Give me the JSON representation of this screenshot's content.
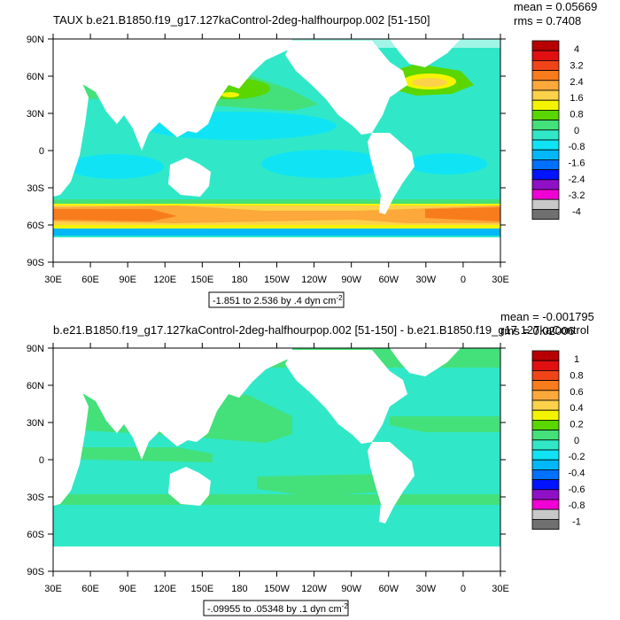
{
  "chart_data": [
    {
      "type": "heatmap",
      "title": "TAUX b.e21.B1850.f19_g17.127kaControl-2deg-halfhourpop.002 [51-150]",
      "stats": {
        "mean": "mean = 0.05669",
        "rms": "rms = 0.7408"
      },
      "lat_ticks": [
        "90N",
        "60N",
        "30N",
        "0",
        "30S",
        "60S",
        "90S"
      ],
      "lon_ticks": [
        "30E",
        "60E",
        "90E",
        "120E",
        "150E",
        "180",
        "150W",
        "120W",
        "90W",
        "60W",
        "30W",
        "0",
        "30E"
      ],
      "colorbar_labels": [
        "4",
        "3.2",
        "2.4",
        "1.6",
        "0.8",
        "0",
        "-0.8",
        "-1.6",
        "-2.4",
        "-3.2",
        "-4"
      ],
      "colorbar_colors": [
        "#b80000",
        "#e01010",
        "#f04418",
        "#f87c1c",
        "#fca83a",
        "#fcd24a",
        "#f4f400",
        "#5ad600",
        "#44e07a",
        "#30e8c8",
        "#10e4f4",
        "#00b8f8",
        "#0070ff",
        "#0014ff",
        "#9010c8",
        "#f000d4",
        "#c8c8c8",
        "#707070"
      ],
      "subtitle": "-1.851 to 2.536 by .4 dyn cm",
      "subtitle_sup": "-2",
      "xlim": [
        30,
        390
      ],
      "ylim": [
        -90,
        90
      ]
    },
    {
      "type": "heatmap",
      "title": "b.e21.B1850.f19_g17.127kaControl-2deg-halfhourpop.002 [51-150] - b.e21.B1850.f19_g17.127kaControl",
      "stats": {
        "mean": "mean = -0.001795",
        "rms": "rms = 0.02006"
      },
      "lat_ticks": [
        "90N",
        "60N",
        "30N",
        "0",
        "30S",
        "60S",
        "90S"
      ],
      "lon_ticks": [
        "30E",
        "60E",
        "90E",
        "120E",
        "150E",
        "180",
        "150W",
        "120W",
        "90W",
        "60W",
        "30W",
        "0",
        "30E"
      ],
      "colorbar_labels": [
        "1",
        "0.8",
        "0.6",
        "0.4",
        "0.2",
        "0",
        "-0.2",
        "-0.4",
        "-0.6",
        "-0.8",
        "-1"
      ],
      "colorbar_colors": [
        "#b80000",
        "#e01010",
        "#f04418",
        "#f87c1c",
        "#fca83a",
        "#fcd24a",
        "#f4f400",
        "#5ad600",
        "#44e07a",
        "#30e8c8",
        "#10e4f4",
        "#00b8f8",
        "#0070ff",
        "#0014ff",
        "#9010c8",
        "#f000d4",
        "#c8c8c8",
        "#707070"
      ],
      "subtitle": "-.09955 to .05348 by .1 dyn cm",
      "subtitle_sup": "-2",
      "xlim": [
        30,
        390
      ],
      "ylim": [
        -90,
        90
      ]
    }
  ]
}
